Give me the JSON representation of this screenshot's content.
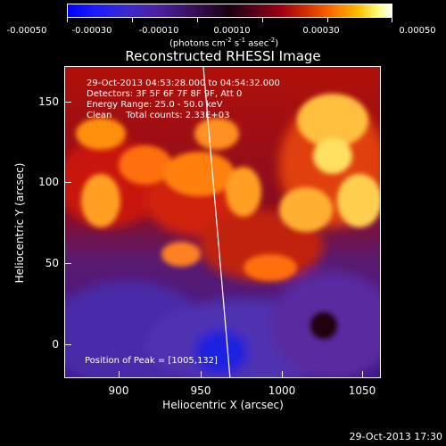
{
  "colorbar": {
    "ticks": [
      "-0.00050",
      "-0.00030",
      "-0.00010",
      "0.00010",
      "0.00030",
      "0.00050"
    ],
    "units": "(photons cm",
    "units_exp1": "-2",
    "units_mid": " s",
    "units_exp2": "-1",
    "units_mid2": " asec",
    "units_exp3": "-2",
    "units_end": ")"
  },
  "title": "Reconstructed RHESSI Image",
  "info": {
    "line1": "29-Oct-2013 04:53:28.000 to 04:54:32.000",
    "line2": "Detectors: 3F 5F 6F 7F 8F 9F, Att 0",
    "line3": "Energy Range: 25.0 - 50.0 keV",
    "line4": "Clean     Total counts: 2.33E+03"
  },
  "peak": "Position of Peak = [1005,132]",
  "axes": {
    "xlabel": "Heliocentric X (arcsec)",
    "ylabel": "Heliocentric Y (arcsec)",
    "xticks": [
      "900",
      "950",
      "1000",
      "1050"
    ],
    "yticks": [
      "150",
      "100",
      "50",
      "0"
    ]
  },
  "timestamp": "29-Oct-2013 17:30"
}
